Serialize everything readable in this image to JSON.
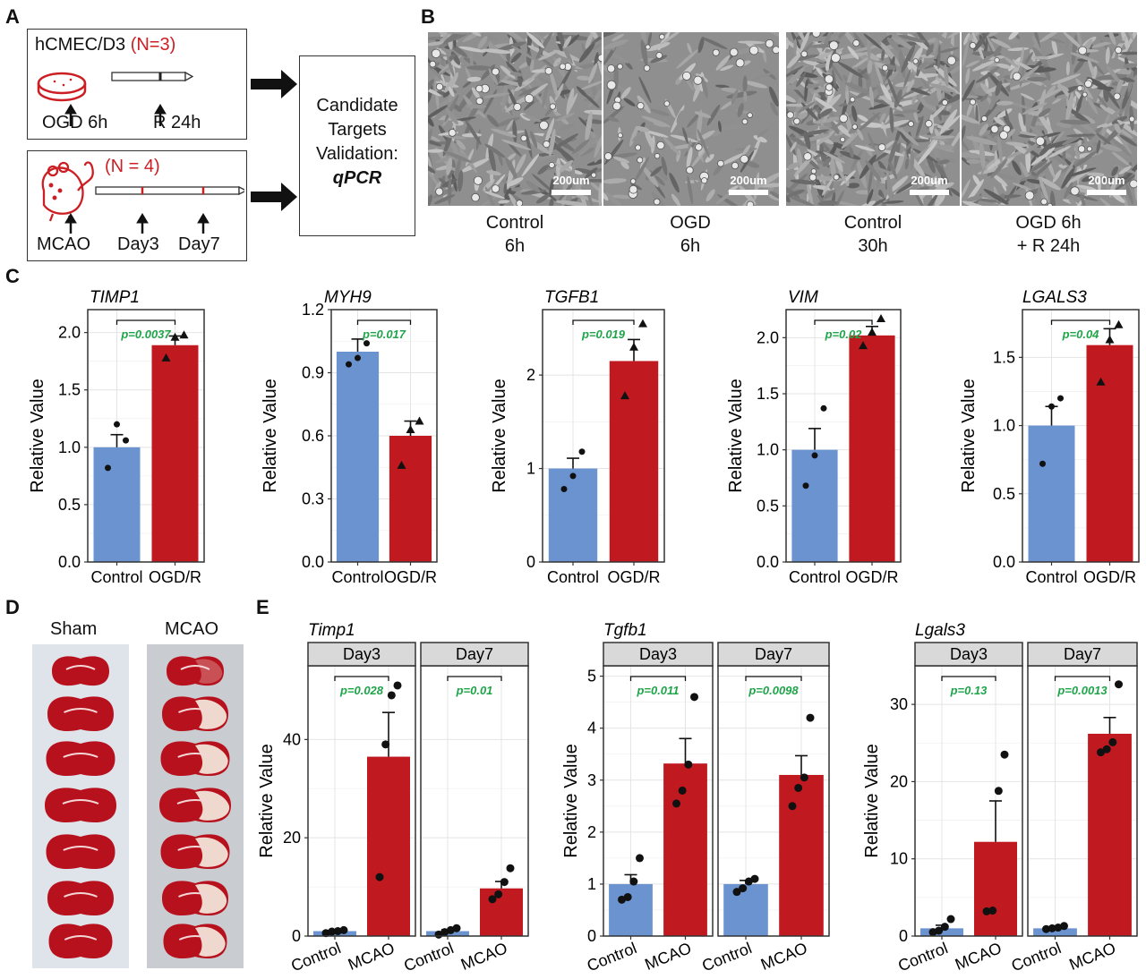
{
  "panels": {
    "A": "A",
    "B": "B",
    "C": "C",
    "D": "D",
    "E": "E"
  },
  "panelA": {
    "cell_line": "hCMEC/D3",
    "cell_n": "(N=3)",
    "cell_steps": [
      "OGD 6h",
      "R 24h"
    ],
    "animal_n": "(N = 4)",
    "animal_steps": [
      "MCAO",
      "Day3",
      "Day7"
    ],
    "validation_lines": [
      "Candidate",
      "Targets",
      "Validation:"
    ],
    "validation_method": "qPCR"
  },
  "panelB": {
    "scalebar": "200um",
    "captions": [
      [
        "Control",
        "6h"
      ],
      [
        "OGD",
        "6h"
      ],
      [
        "Control",
        "30h"
      ],
      [
        "OGD 6h",
        "+ R 24h"
      ]
    ]
  },
  "panelD": {
    "labels": [
      "Sham",
      "MCAO"
    ]
  },
  "colors": {
    "control": "#6b93d0",
    "treated": "#c01a20",
    "pvalue": "#1fa44a",
    "strip": "#d9d9d9",
    "brain_red": "#b8111e",
    "brain_pale": "#f1e4d8"
  },
  "chart_data": [
    {
      "type": "bar",
      "panel": "C",
      "title": "TIMP1",
      "ylabel": "Relative Value",
      "categories": [
        "Control",
        "OGD/R"
      ],
      "values": [
        1.0,
        1.89
      ],
      "errors": [
        0.11,
        0.08
      ],
      "points": [
        [
          0.82,
          1.2,
          1.06
        ],
        [
          1.78,
          1.96,
          1.98
        ]
      ],
      "ylim": [
        0,
        2.2
      ],
      "yticks": [
        0.0,
        0.5,
        1.0,
        1.5,
        2.0
      ],
      "ytick_labels": [
        "0.0",
        "0.5",
        "1.0",
        "1.5",
        "2.0"
      ],
      "pvalue": "p=0.0037",
      "grid": true
    },
    {
      "type": "bar",
      "panel": "C",
      "title": "MYH9",
      "ylabel": "Relative Value",
      "categories": [
        "Control",
        "OGD/R"
      ],
      "values": [
        1.0,
        0.6
      ],
      "errors": [
        0.06,
        0.07
      ],
      "points": [
        [
          0.94,
          0.97,
          1.04
        ],
        [
          0.46,
          0.63,
          0.67
        ]
      ],
      "ylim": [
        0,
        1.2
      ],
      "yticks": [
        0.0,
        0.3,
        0.6,
        0.9,
        1.2
      ],
      "ytick_labels": [
        "0.0",
        "0.3",
        "0.6",
        "0.9",
        "1.2"
      ],
      "pvalue": "p=0.017",
      "grid": true
    },
    {
      "type": "bar",
      "panel": "C",
      "title": "TGFB1",
      "ylabel": "Relative Value",
      "categories": [
        "Control",
        "OGD/R"
      ],
      "values": [
        1.0,
        2.15
      ],
      "errors": [
        0.11,
        0.23
      ],
      "points": [
        [
          0.78,
          0.92,
          1.18
        ],
        [
          1.78,
          2.3,
          2.55
        ]
      ],
      "ylim": [
        0,
        2.7
      ],
      "yticks": [
        0,
        1,
        2
      ],
      "ytick_labels": [
        "0",
        "1",
        "2"
      ],
      "pvalue": "p=0.019",
      "grid": true
    },
    {
      "type": "bar",
      "panel": "C",
      "title": "VIM",
      "ylabel": "Relative Value",
      "categories": [
        "Control",
        "OGD/R"
      ],
      "values": [
        1.0,
        2.02
      ],
      "errors": [
        0.19,
        0.08
      ],
      "points": [
        [
          0.68,
          0.95,
          1.37
        ],
        [
          1.93,
          2.05,
          2.17
        ]
      ],
      "ylim": [
        0,
        2.25
      ],
      "yticks": [
        0.0,
        0.5,
        1.0,
        1.5,
        2.0
      ],
      "ytick_labels": [
        "0.0",
        "0.5",
        "1.0",
        "1.5",
        "2.0"
      ],
      "pvalue": "p=0.02",
      "grid": true
    },
    {
      "type": "bar",
      "panel": "C",
      "title": "LGALS3",
      "ylabel": "Relative Value",
      "categories": [
        "Control",
        "OGD/R"
      ],
      "values": [
        1.0,
        1.59
      ],
      "errors": [
        0.14,
        0.12
      ],
      "points": [
        [
          0.72,
          1.14,
          1.2
        ],
        [
          1.32,
          1.63,
          1.74
        ]
      ],
      "ylim": [
        0,
        1.85
      ],
      "yticks": [
        0.0,
        0.5,
        1.0,
        1.5
      ],
      "ytick_labels": [
        "0.0",
        "0.5",
        "1.0",
        "1.5"
      ],
      "pvalue": "p=0.04",
      "grid": true
    },
    {
      "type": "bar",
      "panel": "E",
      "title": "Timp1",
      "ylabel": "Relative Value",
      "categories": [
        "Control",
        "MCAO"
      ],
      "ylim": [
        0,
        55
      ],
      "yticks": [
        0,
        20,
        40
      ],
      "ytick_labels": [
        "0",
        "20",
        "40"
      ],
      "facets": [
        {
          "label": "Day3",
          "values": [
            1.0,
            36.5
          ],
          "errors": [
            0.2,
            9.0
          ],
          "points": [
            [
              0.6,
              0.9,
              1.0,
              1.2
            ],
            [
              12,
              39,
              49,
              51
            ]
          ],
          "pvalue": "p=0.028"
        },
        {
          "label": "Day7",
          "values": [
            1.0,
            9.7
          ],
          "errors": [
            0.3,
            1.4
          ],
          "points": [
            [
              0.3,
              0.8,
              1.2,
              1.6
            ],
            [
              7.5,
              8.5,
              11,
              13.8
            ]
          ],
          "pvalue": "p=0.01"
        }
      ]
    },
    {
      "type": "bar",
      "panel": "E",
      "title": "Tgfb1",
      "ylabel": "Relative Value",
      "categories": [
        "Control",
        "MCAO"
      ],
      "ylim": [
        0,
        5.2
      ],
      "yticks": [
        0,
        1,
        2,
        3,
        4,
        5
      ],
      "ytick_labels": [
        "0",
        "1",
        "2",
        "3",
        "4",
        "5"
      ],
      "facets": [
        {
          "label": "Day3",
          "values": [
            1.0,
            3.32
          ],
          "errors": [
            0.18,
            0.48
          ],
          "points": [
            [
              0.7,
              0.75,
              1.05,
              1.5
            ],
            [
              2.55,
              2.8,
              3.3,
              4.6
            ]
          ],
          "pvalue": "p=0.011"
        },
        {
          "label": "Day7",
          "values": [
            1.0,
            3.1
          ],
          "errors": [
            0.07,
            0.37
          ],
          "points": [
            [
              0.85,
              0.92,
              1.05,
              1.1
            ],
            [
              2.5,
              2.85,
              3.05,
              4.2
            ]
          ],
          "pvalue": "p=0.0098"
        }
      ]
    },
    {
      "type": "bar",
      "panel": "E",
      "title": "Lgals3",
      "ylabel": "Relative Value",
      "categories": [
        "Control",
        "MCAO"
      ],
      "ylim": [
        0,
        35
      ],
      "yticks": [
        0,
        10,
        20,
        30
      ],
      "ytick_labels": [
        "0",
        "10",
        "20",
        "30"
      ],
      "facets": [
        {
          "label": "Day3",
          "values": [
            1.0,
            12.2
          ],
          "errors": [
            0.4,
            5.3
          ],
          "points": [
            [
              0.5,
              0.7,
              1.2,
              2.2
            ],
            [
              3.2,
              3.3,
              18.8,
              23.5
            ]
          ],
          "pvalue": "p=0.13"
        },
        {
          "label": "Day7",
          "values": [
            1.0,
            26.2
          ],
          "errors": [
            0.15,
            2.1
          ],
          "points": [
            [
              0.9,
              1.0,
              1.1,
              1.3
            ],
            [
              23.8,
              24.2,
              25.1,
              32.6
            ]
          ],
          "pvalue": "p=0.0013"
        }
      ]
    }
  ]
}
